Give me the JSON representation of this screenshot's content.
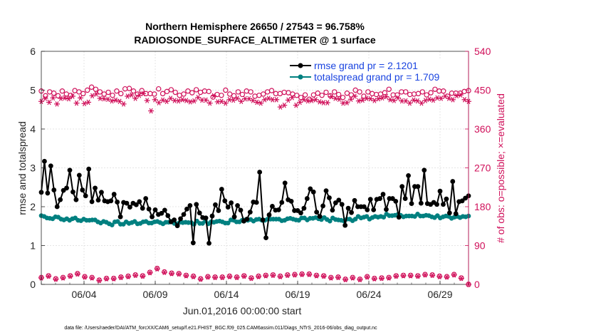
{
  "chart_data": {
    "type": "line",
    "title": [
      "Northern Hemisphere 26650 / 27543 = 96.758%",
      "RADIOSONDE_SURFACE_ALTIMETER @ 1 surface"
    ],
    "xlabel": "Jun.01,2016 00:00:00 start",
    "ylabel_left": "rmse and totalspread",
    "ylabel_right": "# of obs: o=possible; ×=evaluated",
    "footnote": "data file: /Users/raeder/DAI/ATM_forcXX/CAM6_setup/f.e21.FHIST_BGC.f09_025.CAM6assim.011/Diags_NTrS_2016-06/obs_diag_output.nc",
    "x_tick_labels": [
      "06/04",
      "06/09",
      "06/14",
      "06/19",
      "06/24",
      "06/29"
    ],
    "x_tick_days": [
      4,
      9,
      14,
      19,
      24,
      29
    ],
    "xlim": [
      1.0,
      31.0
    ],
    "ylim_left": [
      0,
      6
    ],
    "yticks_left": [
      "0",
      "1",
      "2",
      "3",
      "4",
      "5",
      "6"
    ],
    "ylim_right": [
      0,
      540
    ],
    "yticks_right": [
      "0",
      "90",
      "180",
      "270",
      "360",
      "450",
      "540"
    ],
    "colors": {
      "rmse": "#000000",
      "spread": "#008080",
      "obs": "#d0105a",
      "legend_text": "#1a44e0"
    },
    "legend": [
      {
        "label": "rmse grand pr = 2.1201",
        "series": "rmse"
      },
      {
        "label": "totalspread grand pr = 1.709",
        "series": "spread"
      }
    ],
    "series_rmse": [
      2.37,
      3.17,
      2.35,
      3.05,
      2.43,
      2.0,
      2.18,
      2.42,
      2.48,
      2.94,
      2.38,
      2.18,
      2.81,
      2.43,
      2.28,
      2.97,
      2.13,
      2.48,
      2.17,
      2.37,
      2.15,
      2.13,
      2.15,
      2.32,
      2.12,
      1.74,
      2.11,
      2.09,
      1.99,
      2.09,
      2.05,
      2.13,
      1.96,
      2.21,
      1.94,
      1.74,
      1.92,
      1.8,
      1.83,
      1.91,
      1.77,
      1.61,
      1.66,
      1.51,
      1.69,
      1.8,
      1.94,
      2.03,
      1.07,
      2.06,
      1.84,
      1.72,
      1.71,
      1.06,
      1.76,
      2.05,
      1.9,
      2.45,
      2.15,
      1.99,
      2.1,
      1.74,
      2.03,
      1.91,
      1.63,
      1.68,
      1.86,
      2.12,
      2.11,
      2.89,
      1.66,
      1.2,
      1.79,
      2.01,
      1.91,
      1.92,
      2.11,
      2.61,
      2.18,
      2.14,
      1.9,
      1.9,
      1.84,
      1.96,
      2.21,
      2.46,
      2.38,
      1.86,
      1.75,
      2.02,
      2.41,
      2.23,
      1.91,
      2.1,
      2.17,
      2.06,
      1.52,
      1.96,
      1.85,
      2.16,
      2.0,
      2.0,
      2.0,
      1.92,
      2.19,
      1.92,
      2.19,
      2.21,
      2.32,
      1.93,
      2.21,
      2.21,
      2.14,
      1.73,
      2.52,
      2.21,
      2.8,
      2.08,
      2.52,
      2.52,
      2.09,
      2.94,
      2.08,
      2.06,
      2.11,
      2.06,
      2.4,
      2.06,
      2.2,
      1.84,
      2.65,
      1.82,
      2.13,
      2.15,
      2.22,
      2.28
    ],
    "series_spread": [
      1.77,
      1.75,
      1.71,
      1.7,
      1.69,
      1.74,
      1.73,
      1.68,
      1.66,
      1.69,
      1.65,
      1.69,
      1.71,
      1.65,
      1.64,
      1.68,
      1.65,
      1.65,
      1.66,
      1.66,
      1.61,
      1.58,
      1.62,
      1.6,
      1.56,
      1.53,
      1.61,
      1.62,
      1.55,
      1.55,
      1.61,
      1.57,
      1.59,
      1.62,
      1.56,
      1.57,
      1.61,
      1.62,
      1.58,
      1.58,
      1.61,
      1.62,
      1.59,
      1.56,
      1.6,
      1.6,
      1.62,
      1.57,
      1.56,
      1.6,
      1.59,
      1.6,
      1.59,
      1.59,
      1.55,
      1.63,
      1.57,
      1.57,
      1.63,
      1.56,
      1.61,
      1.6,
      1.62,
      1.63,
      1.61,
      1.58,
      1.58,
      1.66,
      1.65,
      1.61,
      1.61,
      1.65,
      1.66,
      1.65,
      1.67,
      1.63,
      1.67,
      1.68,
      1.65,
      1.65,
      1.68,
      1.68,
      1.68,
      1.68,
      1.68,
      1.64,
      1.65,
      1.69,
      1.7,
      1.68,
      1.66,
      1.65,
      1.71,
      1.71,
      1.66,
      1.7,
      1.7,
      1.72,
      1.69,
      1.67,
      1.72,
      1.67,
      1.63,
      1.71,
      1.67,
      1.66,
      1.65,
      1.63,
      1.68,
      1.68,
      1.64,
      1.68,
      1.75,
      1.71,
      1.73,
      1.75,
      1.68,
      1.72,
      1.75,
      1.73,
      1.75,
      1.73,
      1.81,
      1.77,
      1.77,
      1.78,
      1.8,
      1.78,
      1.74,
      1.76,
      1.76,
      1.76,
      1.75,
      1.81,
      1.76,
      1.76,
      1.78,
      1.77,
      1.74,
      1.72,
      1.77,
      1.71,
      1.74,
      1.76,
      1.75,
      1.7,
      1.73,
      1.75,
      1.72,
      1.75,
      1.74,
      1.76
    ],
    "obs_possible": [
      448,
      437,
      446,
      443,
      437,
      448,
      441,
      438,
      449,
      446,
      442,
      450,
      457,
      452,
      446,
      441,
      445,
      438,
      448,
      442,
      453,
      454,
      448,
      441,
      449,
      442,
      442,
      441,
      453,
      442,
      447,
      451,
      445,
      438,
      441,
      448,
      444,
      451,
      445,
      448,
      447,
      434,
      440,
      438,
      450,
      441,
      437,
      446,
      440,
      448,
      446,
      436,
      438,
      441,
      446,
      449,
      442,
      442,
      445,
      444,
      441,
      438,
      433,
      439,
      429,
      439,
      443,
      438,
      445,
      437,
      446,
      440,
      433,
      443,
      439,
      450,
      446,
      436,
      446,
      442,
      440,
      441,
      444,
      452,
      439,
      439,
      446,
      446,
      440,
      441,
      442,
      446,
      439,
      444,
      452,
      448,
      448,
      436,
      443,
      443,
      443,
      447,
      449
    ],
    "obs_evaluated": [
      424,
      431,
      422,
      432,
      418,
      431,
      432,
      430,
      436,
      420,
      432,
      419,
      422,
      437,
      441,
      431,
      430,
      429,
      425,
      427,
      424,
      418,
      436,
      439,
      431,
      438,
      442,
      426,
      402,
      428,
      421,
      427,
      424,
      431,
      426,
      425,
      428,
      426,
      423,
      425,
      433,
      427,
      427,
      420,
      437,
      423,
      424,
      420,
      428,
      427,
      431,
      424,
      430,
      430,
      426,
      422,
      420,
      428,
      431,
      428,
      428,
      411,
      415,
      427,
      433,
      415,
      422,
      428,
      425,
      426,
      428,
      423,
      421,
      421,
      435,
      431,
      429,
      420,
      421,
      429,
      436,
      425,
      427,
      431,
      430,
      426,
      430,
      432,
      435,
      428,
      426,
      432,
      425,
      425,
      420,
      427,
      425,
      420,
      426,
      429,
      427,
      432,
      431,
      436,
      431,
      428,
      437,
      439,
      428,
      424
    ],
    "obs_possible_low": [
      16,
      20,
      13,
      16,
      20,
      25,
      18,
      16,
      10,
      14,
      14,
      17,
      19,
      22,
      20,
      28,
      37,
      29,
      26,
      25,
      21,
      19,
      13,
      18,
      17,
      17,
      19,
      17,
      20,
      15,
      19,
      21,
      22,
      19,
      22,
      23,
      24,
      24,
      21,
      20,
      16,
      17,
      12,
      16,
      12,
      18,
      14,
      15,
      16,
      20,
      21,
      21,
      20,
      23,
      22,
      19,
      18,
      23,
      15,
      0
    ],
    "obs_evaluated_low": [
      15,
      19,
      12,
      15,
      19,
      24,
      17,
      15,
      9,
      13,
      13,
      16,
      18,
      21,
      19,
      27,
      36,
      28,
      25,
      24,
      20,
      18,
      12,
      17,
      16,
      16,
      18,
      16,
      19,
      14,
      18,
      20,
      21,
      18,
      21,
      22,
      23,
      23,
      20,
      19,
      15,
      16,
      11,
      15,
      11,
      17,
      13,
      14,
      15,
      19,
      20,
      20,
      19,
      22,
      21,
      18,
      17,
      22,
      14,
      0
    ]
  }
}
